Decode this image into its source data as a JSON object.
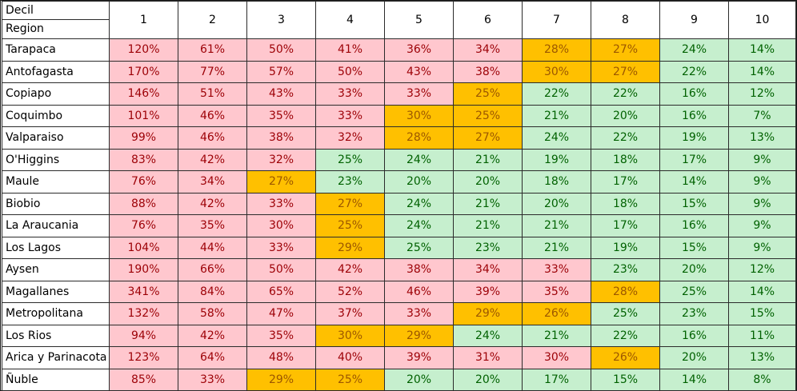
{
  "corner": {
    "top": "Decil",
    "bottom": "Region"
  },
  "deciles": [
    "1",
    "2",
    "3",
    "4",
    "5",
    "6",
    "7",
    "8",
    "9",
    "10"
  ],
  "rows": [
    {
      "region": "Tarapaca",
      "cells": [
        [
          "120%",
          "pink"
        ],
        [
          "61%",
          "pink"
        ],
        [
          "50%",
          "pink"
        ],
        [
          "41%",
          "pink"
        ],
        [
          "36%",
          "pink"
        ],
        [
          "34%",
          "pink"
        ],
        [
          "28%",
          "amber"
        ],
        [
          "27%",
          "amber"
        ],
        [
          "24%",
          "green"
        ],
        [
          "14%",
          "green"
        ]
      ]
    },
    {
      "region": "Antofagasta",
      "cells": [
        [
          "170%",
          "pink"
        ],
        [
          "77%",
          "pink"
        ],
        [
          "57%",
          "pink"
        ],
        [
          "50%",
          "pink"
        ],
        [
          "43%",
          "pink"
        ],
        [
          "38%",
          "pink"
        ],
        [
          "30%",
          "amber"
        ],
        [
          "27%",
          "amber"
        ],
        [
          "22%",
          "green"
        ],
        [
          "14%",
          "green"
        ]
      ]
    },
    {
      "region": "Copiapo",
      "cells": [
        [
          "146%",
          "pink"
        ],
        [
          "51%",
          "pink"
        ],
        [
          "43%",
          "pink"
        ],
        [
          "33%",
          "pink"
        ],
        [
          "33%",
          "pink"
        ],
        [
          "25%",
          "amber"
        ],
        [
          "22%",
          "green"
        ],
        [
          "22%",
          "green"
        ],
        [
          "16%",
          "green"
        ],
        [
          "12%",
          "green"
        ]
      ]
    },
    {
      "region": "Coquimbo",
      "cells": [
        [
          "101%",
          "pink"
        ],
        [
          "46%",
          "pink"
        ],
        [
          "35%",
          "pink"
        ],
        [
          "33%",
          "pink"
        ],
        [
          "30%",
          "amber"
        ],
        [
          "25%",
          "amber"
        ],
        [
          "21%",
          "green"
        ],
        [
          "20%",
          "green"
        ],
        [
          "16%",
          "green"
        ],
        [
          "7%",
          "green"
        ]
      ]
    },
    {
      "region": "Valparaiso",
      "cells": [
        [
          "99%",
          "pink"
        ],
        [
          "46%",
          "pink"
        ],
        [
          "38%",
          "pink"
        ],
        [
          "32%",
          "pink"
        ],
        [
          "28%",
          "amber"
        ],
        [
          "27%",
          "amber"
        ],
        [
          "24%",
          "green"
        ],
        [
          "22%",
          "green"
        ],
        [
          "19%",
          "green"
        ],
        [
          "13%",
          "green"
        ]
      ]
    },
    {
      "region": "O'Higgins",
      "cells": [
        [
          "83%",
          "pink"
        ],
        [
          "42%",
          "pink"
        ],
        [
          "32%",
          "pink"
        ],
        [
          "25%",
          "green"
        ],
        [
          "24%",
          "green"
        ],
        [
          "21%",
          "green"
        ],
        [
          "19%",
          "green"
        ],
        [
          "18%",
          "green"
        ],
        [
          "17%",
          "green"
        ],
        [
          "9%",
          "green"
        ]
      ]
    },
    {
      "region": "Maule",
      "cells": [
        [
          "76%",
          "pink"
        ],
        [
          "34%",
          "pink"
        ],
        [
          "27%",
          "amber"
        ],
        [
          "23%",
          "green"
        ],
        [
          "20%",
          "green"
        ],
        [
          "20%",
          "green"
        ],
        [
          "18%",
          "green"
        ],
        [
          "17%",
          "green"
        ],
        [
          "14%",
          "green"
        ],
        [
          "9%",
          "green"
        ]
      ]
    },
    {
      "region": "Biobio",
      "cells": [
        [
          "88%",
          "pink"
        ],
        [
          "42%",
          "pink"
        ],
        [
          "33%",
          "pink"
        ],
        [
          "27%",
          "amber"
        ],
        [
          "24%",
          "green"
        ],
        [
          "21%",
          "green"
        ],
        [
          "20%",
          "green"
        ],
        [
          "18%",
          "green"
        ],
        [
          "15%",
          "green"
        ],
        [
          "9%",
          "green"
        ]
      ]
    },
    {
      "region": "La Araucania",
      "cells": [
        [
          "76%",
          "pink"
        ],
        [
          "35%",
          "pink"
        ],
        [
          "30%",
          "pink"
        ],
        [
          "25%",
          "amber"
        ],
        [
          "24%",
          "green"
        ],
        [
          "21%",
          "green"
        ],
        [
          "21%",
          "green"
        ],
        [
          "17%",
          "green"
        ],
        [
          "16%",
          "green"
        ],
        [
          "9%",
          "green"
        ]
      ]
    },
    {
      "region": "Los Lagos",
      "cells": [
        [
          "104%",
          "pink"
        ],
        [
          "44%",
          "pink"
        ],
        [
          "33%",
          "pink"
        ],
        [
          "29%",
          "amber"
        ],
        [
          "25%",
          "green"
        ],
        [
          "23%",
          "green"
        ],
        [
          "21%",
          "green"
        ],
        [
          "19%",
          "green"
        ],
        [
          "15%",
          "green"
        ],
        [
          "9%",
          "green"
        ]
      ]
    },
    {
      "region": "Aysen",
      "cells": [
        [
          "190%",
          "pink"
        ],
        [
          "66%",
          "pink"
        ],
        [
          "50%",
          "pink"
        ],
        [
          "42%",
          "pink"
        ],
        [
          "38%",
          "pink"
        ],
        [
          "34%",
          "pink"
        ],
        [
          "33%",
          "pink"
        ],
        [
          "23%",
          "green"
        ],
        [
          "20%",
          "green"
        ],
        [
          "12%",
          "green"
        ]
      ]
    },
    {
      "region": "Magallanes",
      "cells": [
        [
          "341%",
          "pink"
        ],
        [
          "84%",
          "pink"
        ],
        [
          "65%",
          "pink"
        ],
        [
          "52%",
          "pink"
        ],
        [
          "46%",
          "pink"
        ],
        [
          "39%",
          "pink"
        ],
        [
          "35%",
          "pink"
        ],
        [
          "28%",
          "amber"
        ],
        [
          "25%",
          "green"
        ],
        [
          "14%",
          "green"
        ]
      ]
    },
    {
      "region": "Metropolitana",
      "cells": [
        [
          "132%",
          "pink"
        ],
        [
          "58%",
          "pink"
        ],
        [
          "47%",
          "pink"
        ],
        [
          "37%",
          "pink"
        ],
        [
          "33%",
          "pink"
        ],
        [
          "29%",
          "amber"
        ],
        [
          "26%",
          "amber"
        ],
        [
          "25%",
          "green"
        ],
        [
          "23%",
          "green"
        ],
        [
          "15%",
          "green"
        ]
      ]
    },
    {
      "region": "Los Rios",
      "cells": [
        [
          "94%",
          "pink"
        ],
        [
          "42%",
          "pink"
        ],
        [
          "35%",
          "pink"
        ],
        [
          "30%",
          "amber"
        ],
        [
          "29%",
          "amber"
        ],
        [
          "24%",
          "green"
        ],
        [
          "21%",
          "green"
        ],
        [
          "22%",
          "green"
        ],
        [
          "16%",
          "green"
        ],
        [
          "11%",
          "green"
        ]
      ]
    },
    {
      "region": "Arica y Parinacota",
      "cells": [
        [
          "123%",
          "pink"
        ],
        [
          "64%",
          "pink"
        ],
        [
          "48%",
          "pink"
        ],
        [
          "40%",
          "pink"
        ],
        [
          "39%",
          "pink"
        ],
        [
          "31%",
          "pink"
        ],
        [
          "30%",
          "pink"
        ],
        [
          "26%",
          "amber"
        ],
        [
          "20%",
          "green"
        ],
        [
          "13%",
          "green"
        ]
      ]
    },
    {
      "region": "Ñuble",
      "cells": [
        [
          "85%",
          "pink"
        ],
        [
          "33%",
          "pink"
        ],
        [
          "29%",
          "amber"
        ],
        [
          "25%",
          "amber"
        ],
        [
          "20%",
          "green"
        ],
        [
          "20%",
          "green"
        ],
        [
          "17%",
          "green"
        ],
        [
          "15%",
          "green"
        ],
        [
          "14%",
          "green"
        ],
        [
          "8%",
          "green"
        ]
      ]
    }
  ],
  "colors": {
    "pink_fill": "#ffc7ce",
    "pink_text": "#9c0006",
    "amber_fill": "#ffc000",
    "amber_text": "#9c5700",
    "green_fill": "#c6efce",
    "green_text": "#006100"
  }
}
